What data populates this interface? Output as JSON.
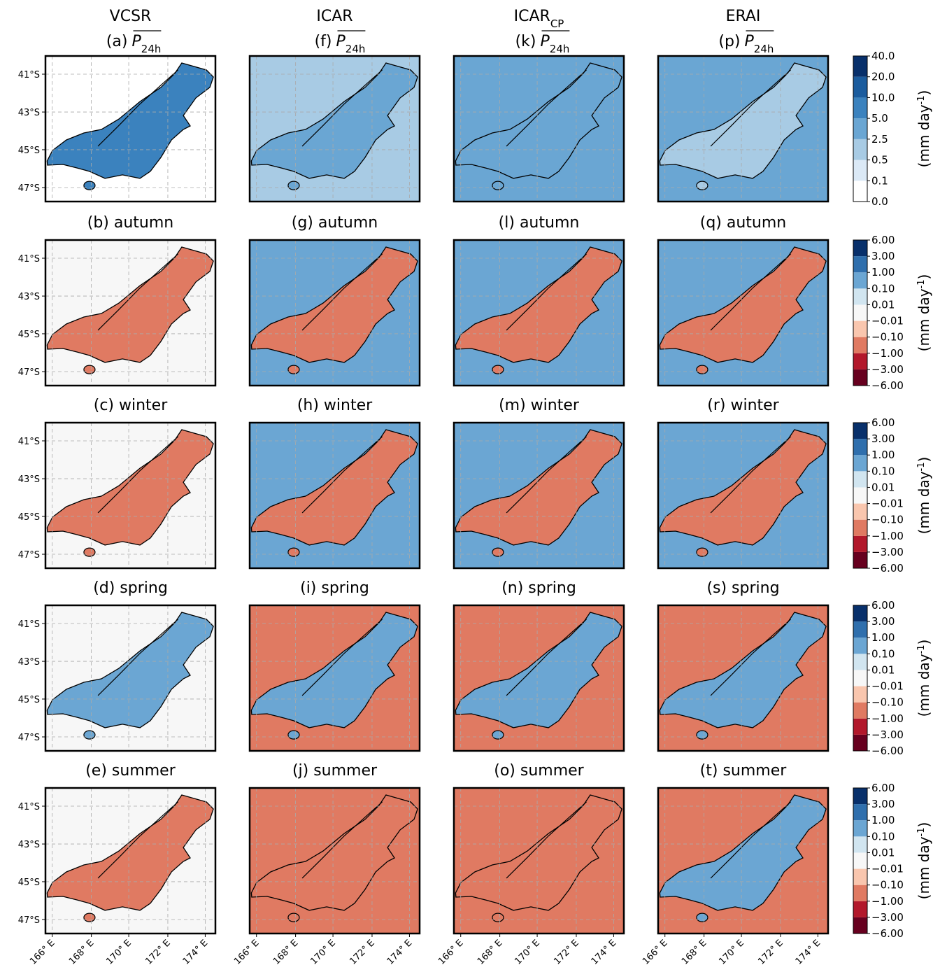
{
  "columns": [
    {
      "title": "VCSR",
      "label": "(a)"
    },
    {
      "title": "ICAR",
      "label": "(f)"
    },
    {
      "title": "ICAR",
      "title_sub": "CP",
      "label": "(k)"
    },
    {
      "title": "ERAI",
      "label": "(p)"
    }
  ],
  "mean_symbol": "P",
  "mean_sub": "24h",
  "rows": [
    {
      "labels": [
        "(b) autumn",
        "(g) autumn",
        "(l) autumn",
        "(q) autumn"
      ]
    },
    {
      "labels": [
        "(c) winter",
        "(h) winter",
        "(m) winter",
        "(r) winter"
      ]
    },
    {
      "labels": [
        "(d) spring",
        "(i) spring",
        "(n) spring",
        "(s) spring"
      ]
    },
    {
      "labels": [
        "(e) summer",
        "(j) summer",
        "(o) summer",
        "(t) summer"
      ]
    }
  ],
  "lat_labels": [
    "41°S",
    "43°S",
    "45°S",
    "47°S"
  ],
  "lon_labels": [
    "166° E",
    "168° E",
    "170° E",
    "172° E",
    "174° E"
  ],
  "unit": {
    "pre": "(mm day",
    "sup": "-1",
    "post": ")"
  },
  "colorbars": {
    "mean": {
      "ticks": [
        {
          "value": 0,
          "label": "0.0"
        },
        0.1,
        0.5,
        2.5,
        {
          "value": 5,
          "label": "5.0"
        },
        {
          "value": 10,
          "label": "10.0"
        },
        {
          "value": 20,
          "label": "20.0"
        },
        {
          "value": 40,
          "label": "40.0"
        }
      ],
      "colors": [
        "#ffffff",
        "#dbe9f6",
        "#a8cbe4",
        "#6aa6d3",
        "#3b82be",
        "#1b5c9e",
        "#08306b"
      ]
    },
    "diff": {
      "ticks": [
        {
          "value": -6,
          "label": "−6.00"
        },
        {
          "value": -3,
          "label": "−3.00"
        },
        {
          "value": -1,
          "label": "−1.00"
        },
        {
          "value": -0.1,
          "label": "−0.10"
        },
        {
          "value": -0.01,
          "label": "−0.01"
        },
        0.01,
        {
          "value": 0.1,
          "label": "0.10"
        },
        {
          "value": 1,
          "label": "1.00"
        },
        {
          "value": 3,
          "label": "3.00"
        },
        {
          "value": 6,
          "label": "6.00"
        }
      ],
      "colors": [
        "#67001f",
        "#b2182b",
        "#e07a62",
        "#f9c6ae",
        "#f7f7f7",
        "#d1e5f0",
        "#6ba6d3",
        "#2f6fad",
        "#08306b"
      ]
    }
  }
}
